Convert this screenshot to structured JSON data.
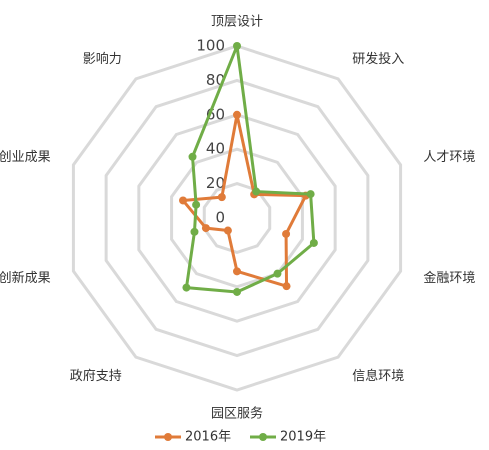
{
  "chart_data": {
    "type": "radar",
    "categories": [
      "顶层设计",
      "研发投入",
      "人才环境",
      "金融环境",
      "信息环境",
      "园区服务",
      "政府支持",
      "创新成果",
      "创业成果",
      "影响力"
    ],
    "series": [
      {
        "name": "2016年",
        "color": "#e07b39",
        "values": [
          60,
          17,
          42,
          30,
          49,
          31,
          9,
          19,
          33,
          15
        ]
      },
      {
        "name": "2019年",
        "color": "#70ad47",
        "values": [
          100,
          19,
          45,
          47,
          40,
          43,
          50,
          26,
          25,
          44
        ]
      }
    ],
    "ylim": [
      0,
      100
    ],
    "yticks": [
      0,
      20,
      40,
      60,
      80,
      100
    ],
    "grid": true,
    "legend": "bottom"
  }
}
